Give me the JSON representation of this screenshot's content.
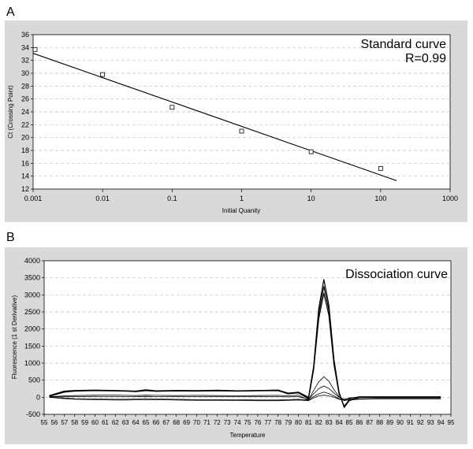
{
  "panels": [
    {
      "letter": "A"
    },
    {
      "letter": "B"
    }
  ],
  "chart_data": [
    {
      "type": "scatter",
      "title": "",
      "xlabel": "Initial Quanity",
      "ylabel": "Ct (Crossing Point)",
      "xscale": "log",
      "xlim": [
        0.001,
        1000
      ],
      "ylim": [
        12,
        36
      ],
      "x_ticks": [
        "0.001",
        "0.01",
        "0.1",
        "1",
        "10",
        "100",
        "1000"
      ],
      "y_ticks": [
        "12",
        "14",
        "16",
        "18",
        "20",
        "22",
        "24",
        "26",
        "28",
        "30",
        "32",
        "34",
        "36"
      ],
      "grid": "horizontal dashed",
      "annotations": [
        "Standard curve",
        "R=0.99"
      ],
      "points": [
        {
          "x": 0.001,
          "y": 33.7
        },
        {
          "x": 0.01,
          "y": 29.8
        },
        {
          "x": 0.1,
          "y": 24.7
        },
        {
          "x": 1,
          "y": 21.0
        },
        {
          "x": 10,
          "y": 17.8
        },
        {
          "x": 100,
          "y": 15.2
        }
      ],
      "fit_line": {
        "x": [
          0.001,
          170
        ],
        "y": [
          33.1,
          13.3
        ]
      }
    },
    {
      "type": "line",
      "title": "",
      "xlabel": "Temperature",
      "ylabel": "Fluorescence (1 st Derivative)",
      "xlim": [
        55,
        95
      ],
      "ylim": [
        -500,
        4000
      ],
      "x_ticks": [
        "55",
        "56",
        "57",
        "58",
        "59",
        "60",
        "61",
        "62",
        "63",
        "64",
        "65",
        "66",
        "67",
        "68",
        "69",
        "70",
        "71",
        "72",
        "73",
        "74",
        "75",
        "76",
        "77",
        "78",
        "79",
        "80",
        "81",
        "82",
        "83",
        "84",
        "85",
        "86",
        "87",
        "88",
        "89",
        "90",
        "91",
        "92",
        "93",
        "94",
        "95"
      ],
      "y_ticks": [
        "-500",
        "0",
        "500",
        "1000",
        "1500",
        "2000",
        "2500",
        "3000",
        "3500",
        "4000"
      ],
      "grid": "horizontal dashed",
      "annotations": [
        "Dissociation curve"
      ],
      "peak_temperature": 82.5,
      "baseline_x": [
        55.5,
        57,
        58,
        60,
        62,
        63,
        64,
        65,
        66,
        68,
        70,
        72,
        74,
        76,
        78,
        79,
        80,
        81,
        81.5,
        82,
        82.5,
        83,
        83.5,
        84,
        84.5,
        85,
        86,
        88,
        90,
        92,
        94
      ],
      "series": [
        {
          "values": [
            50,
            180,
            200,
            210,
            200,
            190,
            180,
            220,
            190,
            200,
            195,
            205,
            190,
            200,
            210,
            120,
            150,
            0,
            900,
            2600,
            3450,
            2700,
            1100,
            150,
            -300,
            -100,
            0,
            0,
            0,
            0,
            0
          ]
        },
        {
          "values": [
            40,
            160,
            190,
            200,
            195,
            185,
            170,
            200,
            180,
            195,
            190,
            200,
            185,
            195,
            205,
            110,
            140,
            -20,
            850,
            2450,
            3250,
            2550,
            1000,
            120,
            -280,
            -90,
            0,
            0,
            0,
            0,
            0
          ]
        },
        {
          "values": [
            30,
            150,
            180,
            195,
            185,
            180,
            165,
            195,
            175,
            185,
            180,
            190,
            180,
            190,
            195,
            100,
            130,
            -40,
            800,
            2300,
            3050,
            2400,
            950,
            100,
            -260,
            -80,
            0,
            0,
            0,
            0,
            0
          ]
        },
        {
          "values": [
            20,
            40,
            50,
            60,
            60,
            55,
            50,
            60,
            55,
            50,
            55,
            50,
            45,
            50,
            55,
            40,
            60,
            -80,
            200,
            450,
            600,
            470,
            220,
            20,
            -100,
            -40,
            20,
            20,
            20,
            20,
            20
          ]
        },
        {
          "values": [
            10,
            20,
            20,
            25,
            20,
            20,
            20,
            25,
            20,
            20,
            20,
            20,
            20,
            20,
            20,
            10,
            20,
            -60,
            100,
            250,
            330,
            260,
            120,
            0,
            -60,
            -20,
            10,
            10,
            10,
            10,
            10
          ]
        },
        {
          "values": [
            0,
            -20,
            -40,
            -50,
            -60,
            -60,
            -50,
            -40,
            -50,
            -60,
            -70,
            -70,
            -70,
            -80,
            -80,
            -70,
            -60,
            -80,
            20,
            100,
            150,
            110,
            40,
            -40,
            -70,
            -60,
            -40,
            -30,
            -30,
            -30,
            -30
          ]
        },
        {
          "values": [
            0,
            -40,
            -60,
            -70,
            -80,
            -80,
            -75,
            -70,
            -70,
            -80,
            -90,
            -90,
            -95,
            -100,
            -100,
            -90,
            -80,
            -100,
            -20,
            40,
            60,
            40,
            0,
            -60,
            -90,
            -80,
            -60,
            -50,
            -50,
            -50,
            -50
          ]
        }
      ]
    }
  ]
}
